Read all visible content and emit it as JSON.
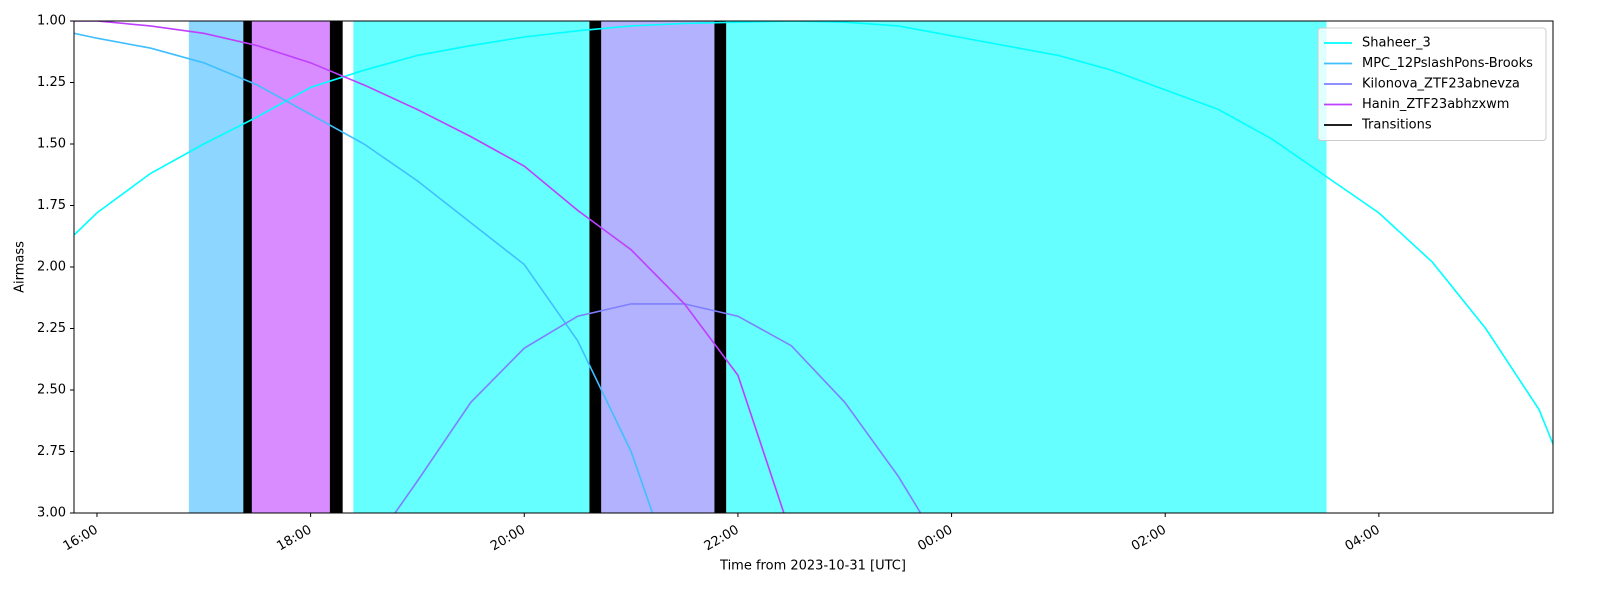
{
  "chart_data": {
    "type": "line",
    "xlabel": "Time from 2023-10-31 [UTC]",
    "ylabel": "Airmass",
    "xlim": [
      15.785,
      29.63
    ],
    "ylim": [
      1,
      3
    ],
    "y_inverted": true,
    "legend": "upper right",
    "xticks": [
      {
        "value": 16,
        "label": "16:00"
      },
      {
        "value": 18,
        "label": "18:00"
      },
      {
        "value": 20,
        "label": "20:00"
      },
      {
        "value": 22,
        "label": "22:00"
      },
      {
        "value": 24,
        "label": "00:00"
      },
      {
        "value": 26,
        "label": "02:00"
      },
      {
        "value": 28,
        "label": "04:00"
      }
    ],
    "yticks": [
      {
        "value": 1,
        "label": "1.00"
      },
      {
        "value": 1.25,
        "label": "1.25"
      },
      {
        "value": 1.5,
        "label": "1.50"
      },
      {
        "value": 1.75,
        "label": "1.75"
      },
      {
        "value": 2,
        "label": "2.00"
      },
      {
        "value": 2.25,
        "label": "2.25"
      },
      {
        "value": 2.5,
        "label": "2.50"
      },
      {
        "value": 2.75,
        "label": "2.75"
      },
      {
        "value": 3,
        "label": "3.00"
      }
    ],
    "blocks": [
      {
        "start": 16.86,
        "end": 17.37,
        "color": "#8cd6ff"
      },
      {
        "start": 17.45,
        "end": 18.18,
        "color": "#d98cff"
      },
      {
        "start": 18.4,
        "end": 20.61,
        "color": "#66ffff"
      },
      {
        "start": 20.72,
        "end": 21.78,
        "color": "#b2b2ff"
      },
      {
        "start": 21.89,
        "end": 27.51,
        "color": "#66ffff"
      }
    ],
    "series": [
      {
        "name": "Shaheer_3",
        "color": "#00ffff",
        "x": [
          15.785,
          16,
          16.5,
          17,
          17.5,
          18,
          18.5,
          19,
          19.5,
          20,
          20.5,
          21,
          21.5,
          22,
          22.5,
          23,
          23.5,
          24,
          24.5,
          25,
          25.5,
          26,
          26.5,
          27,
          27.5,
          28,
          28.5,
          29,
          29.5,
          29.63
        ],
        "values": [
          1.87,
          1.78,
          1.62,
          1.5,
          1.39,
          1.27,
          1.2,
          1.14,
          1.1,
          1.065,
          1.04,
          1.02,
          1.01,
          1.005,
          1.0,
          1.005,
          1.02,
          1.06,
          1.1,
          1.14,
          1.2,
          1.28,
          1.36,
          1.48,
          1.63,
          1.78,
          1.98,
          2.25,
          2.58,
          2.72
        ]
      },
      {
        "name": "MPC_12PslashPons-Brooks",
        "color": "#3fbfff",
        "x": [
          15.785,
          16,
          16.5,
          17,
          17.5,
          18,
          18.5,
          19,
          19.5,
          20,
          20.5,
          21,
          21.2
        ],
        "values": [
          1.05,
          1.07,
          1.11,
          1.17,
          1.26,
          1.38,
          1.5,
          1.65,
          1.82,
          1.99,
          2.3,
          2.75,
          3.0
        ]
      },
      {
        "name": "Kilonova_ZTF23abnevza",
        "color": "#7f7fff",
        "x": [
          18.79,
          19,
          19.5,
          20,
          20.5,
          21,
          21.5,
          22,
          22.5,
          23,
          23.5,
          23.71
        ],
        "values": [
          3.0,
          2.87,
          2.55,
          2.33,
          2.2,
          2.15,
          2.15,
          2.2,
          2.32,
          2.55,
          2.85,
          3.0
        ]
      },
      {
        "name": "Hanin_ZTF23abhzxwm",
        "color": "#bf3fff",
        "x": [
          15.785,
          16,
          16.5,
          17,
          17.5,
          18,
          18.5,
          19,
          19.5,
          20,
          20.5,
          21,
          21.5,
          22,
          22.43
        ],
        "values": [
          1.0,
          1.0,
          1.02,
          1.05,
          1.1,
          1.17,
          1.26,
          1.36,
          1.47,
          1.59,
          1.77,
          1.93,
          2.15,
          2.44,
          3.0
        ]
      }
    ],
    "transitions": {
      "name": "Transitions",
      "color": "#000000",
      "spans": [
        [
          17.37,
          17.45
        ],
        [
          18.18,
          18.3
        ],
        [
          20.61,
          20.72
        ],
        [
          21.78,
          21.89
        ]
      ]
    }
  }
}
